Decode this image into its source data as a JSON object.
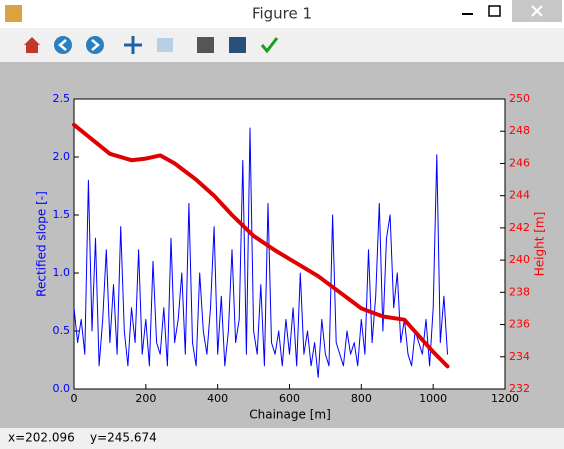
{
  "window": {
    "title": "Figure 1"
  },
  "status": {
    "x": "x=202.096",
    "y": "y=245.674"
  },
  "chart_data": {
    "type": "line",
    "xlabel": "Chainage [m]",
    "ylabel": "Rectified slope [-]",
    "y2label": "Height [m]",
    "xlim": [
      0,
      1200
    ],
    "xticks": [
      0,
      200,
      400,
      600,
      800,
      1000,
      1200
    ],
    "ylim": [
      0,
      2.5
    ],
    "yticks": [
      {
        "value": 0,
        "label": "0.0"
      },
      0.5,
      {
        "value": 1,
        "label": "1.0"
      },
      1.5,
      {
        "value": 2,
        "label": "2.0"
      },
      2.5
    ],
    "y2lim": [
      232,
      250
    ],
    "y2ticks": [
      232,
      234,
      236,
      238,
      240,
      242,
      244,
      246,
      248,
      250
    ],
    "ylabel_color": "blue",
    "y2label_color": "red",
    "series": [
      {
        "color": "blue",
        "width": 1,
        "x": [
          0,
          10,
          20,
          30,
          40,
          50,
          60,
          70,
          80,
          90,
          100,
          110,
          120,
          130,
          140,
          150,
          160,
          170,
          180,
          190,
          200,
          210,
          220,
          230,
          240,
          250,
          260,
          270,
          280,
          290,
          300,
          310,
          320,
          330,
          340,
          350,
          360,
          370,
          380,
          390,
          400,
          410,
          420,
          430,
          440,
          450,
          460,
          470,
          480,
          490,
          500,
          510,
          520,
          530,
          540,
          550,
          560,
          570,
          580,
          590,
          600,
          610,
          620,
          630,
          640,
          650,
          660,
          670,
          680,
          690,
          700,
          710,
          720,
          730,
          740,
          750,
          760,
          770,
          780,
          790,
          800,
          810,
          820,
          830,
          840,
          850,
          860,
          870,
          880,
          890,
          900,
          910,
          920,
          930,
          940,
          950,
          960,
          970,
          980,
          990,
          1000,
          1010,
          1020,
          1030,
          1040
        ],
        "values": [
          0.7,
          0.4,
          0.6,
          0.3,
          1.8,
          0.5,
          1.3,
          0.2,
          0.6,
          1.2,
          0.4,
          0.9,
          0.3,
          1.4,
          0.5,
          0.2,
          0.7,
          0.4,
          1.2,
          0.3,
          0.6,
          0.2,
          1.1,
          0.4,
          0.3,
          0.7,
          0.2,
          1.3,
          0.4,
          0.6,
          1.0,
          0.3,
          1.6,
          0.4,
          0.2,
          1.0,
          0.5,
          0.3,
          0.7,
          1.4,
          0.3,
          0.8,
          0.2,
          0.5,
          1.2,
          0.4,
          0.6,
          1.97,
          0.3,
          2.25,
          0.5,
          0.3,
          0.9,
          0.2,
          1.6,
          0.4,
          0.3,
          0.5,
          0.2,
          0.6,
          0.3,
          0.7,
          0.2,
          1.0,
          0.3,
          0.5,
          0.2,
          0.4,
          0.1,
          0.6,
          0.3,
          0.2,
          1.5,
          0.4,
          0.3,
          0.2,
          0.5,
          0.3,
          0.4,
          0.2,
          0.6,
          0.3,
          1.2,
          0.4,
          0.8,
          1.6,
          0.5,
          1.3,
          1.5,
          0.7,
          1.0,
          0.4,
          0.6,
          0.3,
          0.2,
          0.5,
          0.4,
          0.3,
          0.6,
          0.2,
          0.7,
          2.02,
          0.4,
          0.8,
          0.3
        ]
      },
      {
        "color": "#e00000",
        "width": 4,
        "axis": "y2",
        "x": [
          0,
          100,
          160,
          200,
          240,
          280,
          340,
          390,
          440,
          500,
          560,
          620,
          680,
          740,
          800,
          860,
          920,
          960,
          1000,
          1040
        ],
        "values": [
          248.4,
          246.6,
          246.2,
          246.3,
          246.5,
          246.0,
          245.0,
          244.0,
          242.8,
          241.5,
          240.6,
          239.8,
          239.0,
          238.0,
          237.0,
          236.5,
          236.3,
          235.3,
          234.3,
          233.4
        ]
      }
    ]
  }
}
